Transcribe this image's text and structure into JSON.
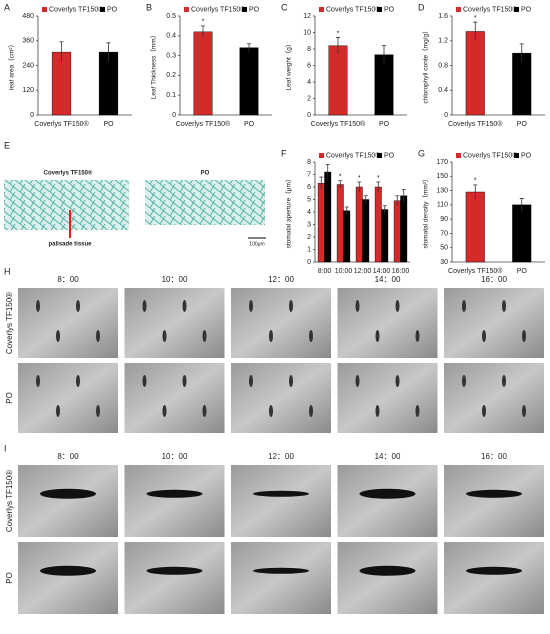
{
  "chart_data": [
    {
      "type": "bar",
      "label": "A",
      "ylabel": "leaf area（cm²）",
      "categories": [
        "Coverlys TF150®",
        "PO"
      ],
      "values": [
        305,
        305
      ],
      "errors": [
        50,
        45
      ],
      "colors": [
        "#d42a2a",
        "#000000"
      ],
      "ylim": [
        0,
        480
      ],
      "yticks": [
        0,
        120,
        240,
        360,
        480
      ],
      "significance": [
        null,
        null
      ]
    },
    {
      "type": "bar",
      "label": "B",
      "ylabel": "Leaf Thickness（mm）",
      "categories": [
        "Coverlys TF150®",
        "PO"
      ],
      "values": [
        0.42,
        0.34
      ],
      "errors": [
        0.03,
        0.02
      ],
      "colors": [
        "#d42a2a",
        "#000000"
      ],
      "ylim": [
        0,
        0.5
      ],
      "yticks": [
        0,
        0.1,
        0.2,
        0.3,
        0.4,
        0.5
      ],
      "significance": [
        "*",
        null
      ]
    },
    {
      "type": "bar",
      "label": "C",
      "ylabel": "Leaf weight（g）",
      "categories": [
        "Coverlys TF150®",
        "PO"
      ],
      "values": [
        8.4,
        7.3
      ],
      "errors": [
        1.0,
        1.1
      ],
      "colors": [
        "#d42a2a",
        "#000000"
      ],
      "ylim": [
        0,
        12
      ],
      "yticks": [
        0,
        2,
        4,
        6,
        8,
        10,
        12
      ],
      "significance": [
        "*",
        null
      ]
    },
    {
      "type": "bar",
      "label": "D",
      "ylabel": "chlorophyll conte（mg/g）",
      "categories": [
        "Coverlys TF150®",
        "PO"
      ],
      "values": [
        1.35,
        1.0
      ],
      "errors": [
        0.15,
        0.15
      ],
      "colors": [
        "#d42a2a",
        "#000000"
      ],
      "ylim": [
        0,
        1.6
      ],
      "yticks": [
        0,
        0.4,
        0.8,
        1.2,
        1.6
      ],
      "significance": [
        "*",
        null
      ]
    },
    {
      "type": "grouped",
      "label": "F",
      "ylabel": "stomatal aperture（μm）",
      "categories": [
        "8:00",
        "10:00",
        "12:00",
        "14:00",
        "16:00"
      ],
      "series": [
        {
          "name": "Coverlys TF150®",
          "color": "#d42a2a",
          "values": [
            6.3,
            6.2,
            6.0,
            6.0,
            4.9
          ],
          "errors": [
            0.5,
            0.3,
            0.4,
            0.4,
            0.4
          ],
          "significance": [
            null,
            "*",
            "*",
            "*",
            null
          ]
        },
        {
          "name": "PO",
          "color": "#000000",
          "values": [
            7.2,
            4.1,
            5.0,
            4.2,
            5.3
          ],
          "errors": [
            0.6,
            0.3,
            0.3,
            0.3,
            0.5
          ],
          "significance": [
            null,
            null,
            null,
            null,
            null
          ]
        }
      ],
      "ylim": [
        0,
        8
      ],
      "yticks": [
        0,
        1,
        2,
        3,
        4,
        5,
        6,
        7,
        8
      ]
    },
    {
      "type": "bar",
      "label": "G",
      "ylabel": "stomatal density（mm²）",
      "categories": [
        "Coverlys TF150®",
        "PO"
      ],
      "values": [
        128,
        110
      ],
      "errors": [
        10,
        9
      ],
      "colors": [
        "#d42a2a",
        "#000000"
      ],
      "ylim": [
        30,
        170
      ],
      "yticks": [
        30,
        50,
        70,
        90,
        110,
        130,
        150,
        170
      ],
      "significance": [
        "*",
        null
      ]
    }
  ],
  "section": {
    "label": "E",
    "left": "Coverlys TF150®",
    "right": "PO",
    "annotation": "palisade tissue",
    "scale": "100μm"
  },
  "micrographs": [
    {
      "label": "H",
      "times": [
        "8：00",
        "10：00",
        "12：00",
        "14：00",
        "16：00"
      ],
      "rows": [
        "Coverlys TF150®",
        "PO"
      ]
    },
    {
      "label": "I",
      "times": [
        "8：00",
        "10：00",
        "12：00",
        "14：00",
        "16：00"
      ],
      "rows": [
        "Coverlys TF150®",
        "PO"
      ]
    }
  ]
}
